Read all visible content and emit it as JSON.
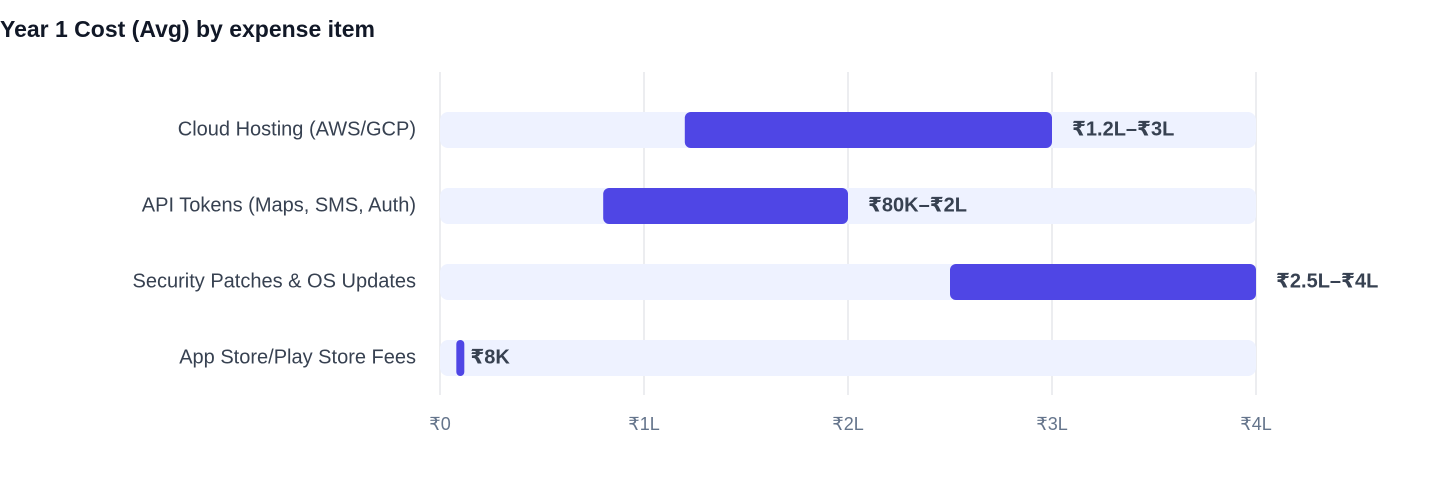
{
  "chart_data": {
    "type": "range-bar",
    "title": "Year 1 Cost (Avg) by expense item",
    "categories": [
      "Cloud Hosting (AWS/GCP)",
      "API Tokens (Maps, SMS, Auth)",
      "Security Patches & OS Updates",
      "App Store/Play Store Fees"
    ],
    "values": [
      [
        120000,
        300000
      ],
      [
        80000,
        200000
      ],
      [
        250000,
        400000
      ],
      [
        8000,
        8000
      ]
    ],
    "value_labels": [
      "₹1.2L–₹3L",
      "₹80K–₹2L",
      "₹2.5L–₹4L",
      "₹8K"
    ],
    "color": "#4f46e5",
    "track_color": "#eef2ff",
    "xlim": [
      0,
      400000
    ],
    "xticks": [
      {
        "value": 0,
        "label": "₹0"
      },
      {
        "value": 100000,
        "label": "₹1L"
      },
      {
        "value": 200000,
        "label": "₹2L"
      },
      {
        "value": 300000,
        "label": "₹3L"
      },
      {
        "value": 400000,
        "label": "₹4L"
      }
    ],
    "grid": true
  }
}
